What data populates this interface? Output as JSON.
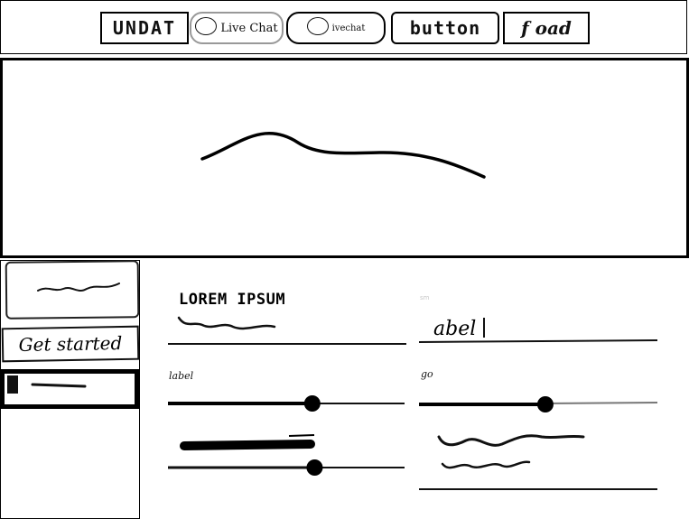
{
  "header": {
    "nav": [
      {
        "label": "UNDAT",
        "has_icon": false
      },
      {
        "label": "Live Chat",
        "has_icon": true,
        "icon": "chat-bubble-icon"
      },
      {
        "label": "ivechat",
        "has_icon": true,
        "icon": "chat-bubble-icon"
      },
      {
        "label": "button",
        "has_icon": false
      },
      {
        "label": "f oad",
        "has_icon": false
      }
    ]
  },
  "hero": {
    "icon": "squiggle-line-icon"
  },
  "sidebar": {
    "card_icon": "squiggle-icon",
    "get_started_label": "Get started",
    "active_item_icon": "text-line-icon"
  },
  "form": {
    "left": {
      "heading": "LOREM IPSUM",
      "slider_label": "label",
      "slider_1_value": 0.61,
      "slider_2_value": 0.62
    },
    "right": {
      "faint_label": "sm",
      "input_value": "abel",
      "slider_label": "go",
      "slider_value": 0.53
    }
  }
}
